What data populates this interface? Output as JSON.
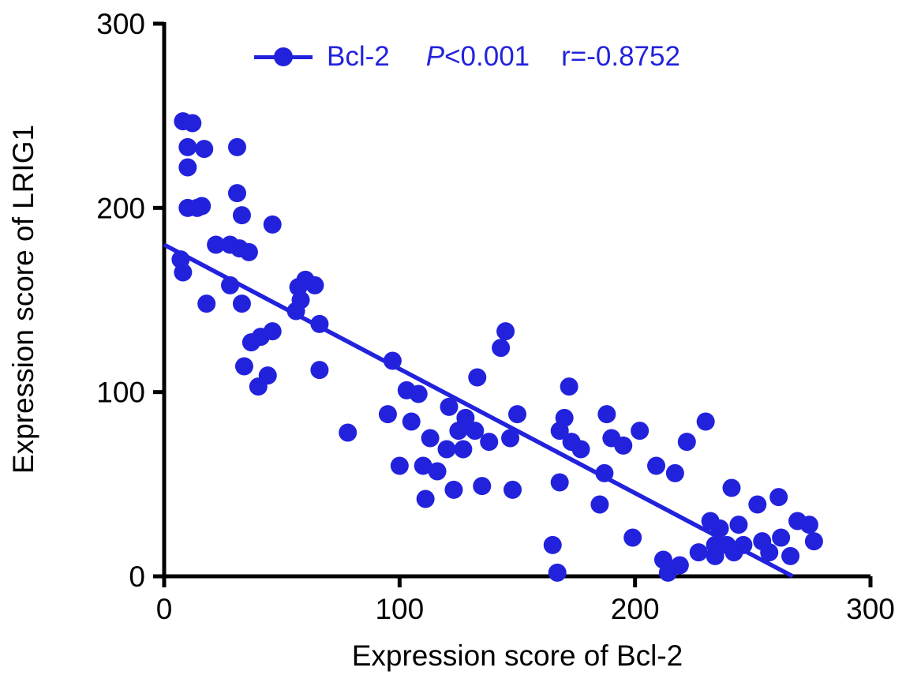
{
  "colors": {
    "accent": "#2222dd",
    "axis": "#000000"
  },
  "chart_data": {
    "type": "scatter",
    "title": "",
    "xlabel": "Expression score of Bcl-2",
    "ylabel": "Expression score of LRIG1",
    "xlim": [
      0,
      300
    ],
    "ylim": [
      0,
      300
    ],
    "x_ticks": [
      0,
      100,
      200,
      300
    ],
    "y_ticks": [
      0,
      100,
      200,
      300
    ],
    "grid": false,
    "legend": {
      "position": "top",
      "series_label": "Bcl-2",
      "p_label": "P",
      "p_value": "<0.001",
      "r_value": "r=-0.8752"
    },
    "trendline": {
      "x1": 0,
      "y1": 180,
      "x2": 267,
      "y2": 0
    },
    "series": [
      {
        "name": "Bcl-2",
        "points": [
          [
            8,
            247
          ],
          [
            12,
            246
          ],
          [
            10,
            233
          ],
          [
            10,
            222
          ],
          [
            17,
            232
          ],
          [
            31,
            233
          ],
          [
            10,
            200
          ],
          [
            14,
            200
          ],
          [
            16,
            201
          ],
          [
            31,
            208
          ],
          [
            33,
            196
          ],
          [
            46,
            191
          ],
          [
            7,
            172
          ],
          [
            8,
            165
          ],
          [
            22,
            180
          ],
          [
            28,
            180
          ],
          [
            32,
            178
          ],
          [
            36,
            176
          ],
          [
            18,
            148
          ],
          [
            28,
            158
          ],
          [
            33,
            148
          ],
          [
            37,
            127
          ],
          [
            34,
            114
          ],
          [
            41,
            130
          ],
          [
            40,
            103
          ],
          [
            44,
            109
          ],
          [
            46,
            133
          ],
          [
            56,
            144
          ],
          [
            57,
            157
          ],
          [
            58,
            150
          ],
          [
            60,
            161
          ],
          [
            64,
            158
          ],
          [
            66,
            137
          ],
          [
            66,
            112
          ],
          [
            78,
            78
          ],
          [
            95,
            88
          ],
          [
            97,
            117
          ],
          [
            100,
            60
          ],
          [
            103,
            101
          ],
          [
            105,
            84
          ],
          [
            108,
            99
          ],
          [
            110,
            60
          ],
          [
            111,
            42
          ],
          [
            113,
            75
          ],
          [
            116,
            57
          ],
          [
            120,
            69
          ],
          [
            121,
            92
          ],
          [
            123,
            47
          ],
          [
            125,
            79
          ],
          [
            127,
            69
          ],
          [
            128,
            86
          ],
          [
            132,
            79
          ],
          [
            133,
            108
          ],
          [
            135,
            49
          ],
          [
            138,
            73
          ],
          [
            143,
            124
          ],
          [
            145,
            133
          ],
          [
            147,
            75
          ],
          [
            148,
            47
          ],
          [
            150,
            88
          ],
          [
            165,
            17
          ],
          [
            167,
            2
          ],
          [
            168,
            51
          ],
          [
            168,
            79
          ],
          [
            170,
            86
          ],
          [
            172,
            103
          ],
          [
            173,
            73
          ],
          [
            177,
            69
          ],
          [
            185,
            39
          ],
          [
            187,
            56
          ],
          [
            188,
            88
          ],
          [
            190,
            75
          ],
          [
            195,
            71
          ],
          [
            199,
            21
          ],
          [
            202,
            79
          ],
          [
            209,
            60
          ],
          [
            212,
            9
          ],
          [
            214,
            2
          ],
          [
            217,
            56
          ],
          [
            219,
            6
          ],
          [
            222,
            73
          ],
          [
            227,
            13
          ],
          [
            230,
            84
          ],
          [
            232,
            30
          ],
          [
            234,
            17
          ],
          [
            234,
            11
          ],
          [
            236,
            26
          ],
          [
            239,
            17
          ],
          [
            241,
            48
          ],
          [
            242,
            13
          ],
          [
            244,
            28
          ],
          [
            246,
            17
          ],
          [
            252,
            39
          ],
          [
            254,
            19
          ],
          [
            257,
            13
          ],
          [
            261,
            43
          ],
          [
            262,
            21
          ],
          [
            266,
            11
          ],
          [
            269,
            30
          ],
          [
            274,
            28
          ],
          [
            276,
            19
          ]
        ]
      }
    ]
  }
}
